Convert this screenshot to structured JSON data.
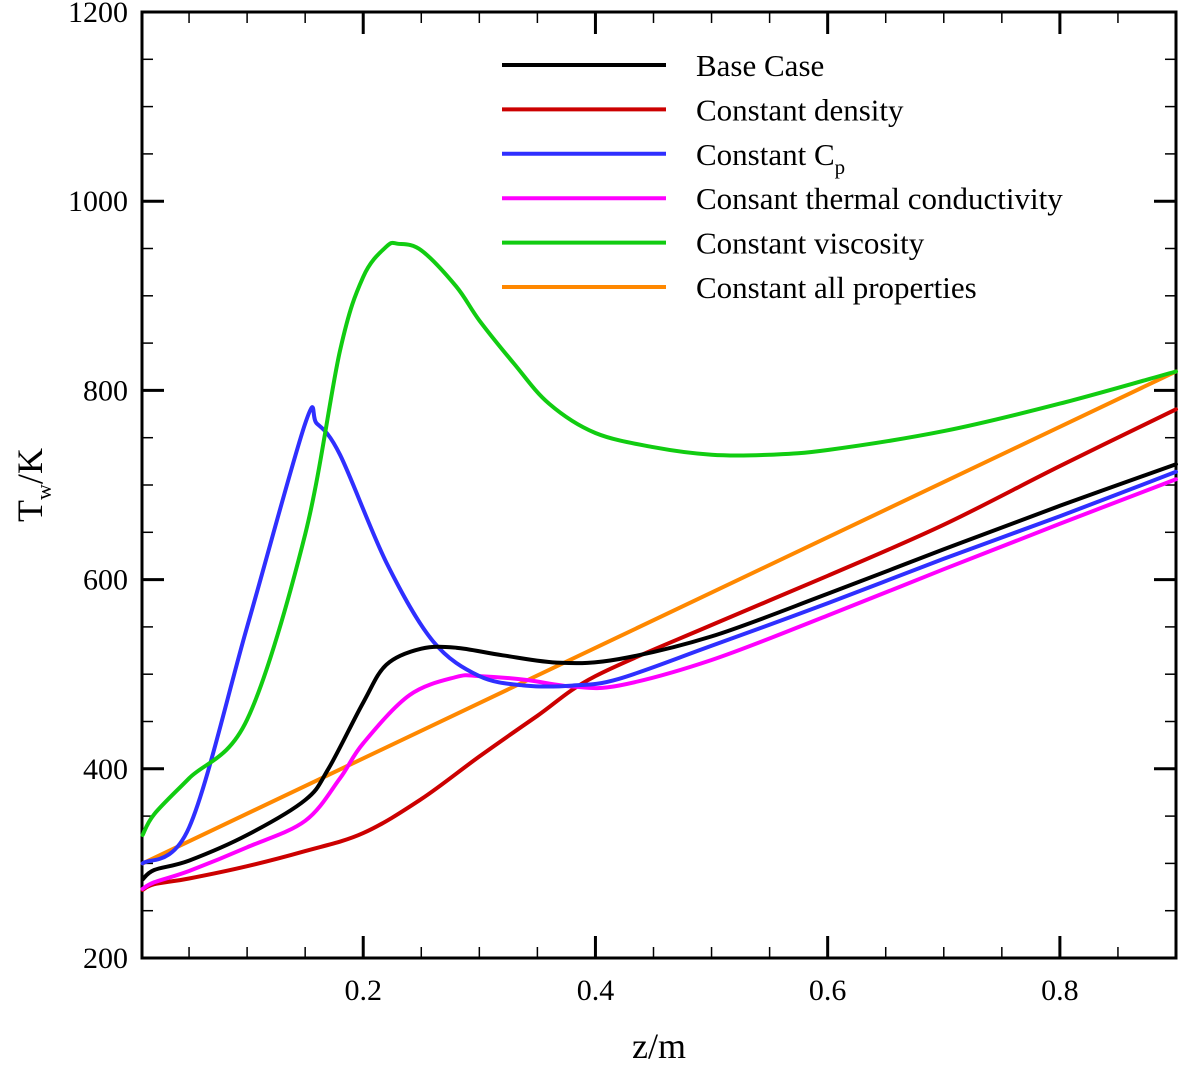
{
  "chart_data": {
    "type": "line",
    "title": "",
    "xlabel": "z/m",
    "ylabel": {
      "main": "T",
      "sub": "w",
      "rest": "/K"
    },
    "xlim": [
      0.01,
      0.9
    ],
    "ylim": [
      200,
      1200
    ],
    "x_ticks": [
      {
        "value": 0.2,
        "label": "0.2"
      },
      {
        "value": 0.4,
        "label": "0.4"
      },
      {
        "value": 0.6,
        "label": "0.6"
      },
      {
        "value": 0.8,
        "label": "0.8"
      }
    ],
    "y_ticks": [
      {
        "value": 200,
        "label": "200"
      },
      {
        "value": 400,
        "label": "400"
      },
      {
        "value": 600,
        "label": "600"
      },
      {
        "value": 800,
        "label": "800"
      },
      {
        "value": 1000,
        "label": "1000"
      },
      {
        "value": 1200,
        "label": "1200"
      }
    ],
    "grid": false,
    "legend_position": "top-right",
    "series": [
      {
        "name": "Base Case",
        "color": "#000000",
        "x": [
          0.01,
          0.02,
          0.05,
          0.1,
          0.15,
          0.17,
          0.2,
          0.22,
          0.25,
          0.28,
          0.32,
          0.37,
          0.42,
          0.5,
          0.6,
          0.7,
          0.8,
          0.9
        ],
        "y": [
          283,
          293,
          303,
          330,
          367,
          400,
          470,
          510,
          527,
          528,
          520,
          512,
          516,
          540,
          585,
          632,
          678,
          722
        ]
      },
      {
        "name": "Constant density",
        "color": "#cc0000",
        "x": [
          0.01,
          0.02,
          0.05,
          0.1,
          0.15,
          0.2,
          0.25,
          0.3,
          0.35,
          0.4,
          0.5,
          0.6,
          0.7,
          0.8,
          0.9
        ],
        "y": [
          272,
          278,
          284,
          297,
          313,
          332,
          368,
          413,
          456,
          498,
          552,
          604,
          658,
          720,
          780
        ]
      },
      {
        "name": "Constant C",
        "name_sub": "p",
        "color": "#2f2fff",
        "x": [
          0.01,
          0.05,
          0.1,
          0.15,
          0.16,
          0.18,
          0.22,
          0.26,
          0.3,
          0.34,
          0.38,
          0.42,
          0.5,
          0.6,
          0.7,
          0.8,
          0.9
        ],
        "y": [
          300,
          338,
          550,
          765,
          765,
          732,
          618,
          535,
          498,
          488,
          488,
          495,
          530,
          575,
          622,
          667,
          714
        ]
      },
      {
        "name": "Consant thermal conductivity",
        "color": "#ff00ff",
        "x": [
          0.01,
          0.02,
          0.05,
          0.1,
          0.15,
          0.18,
          0.2,
          0.24,
          0.28,
          0.3,
          0.34,
          0.38,
          0.42,
          0.5,
          0.6,
          0.7,
          0.8,
          0.9
        ],
        "y": [
          273,
          280,
          292,
          317,
          345,
          390,
          427,
          478,
          497,
          498,
          494,
          487,
          488,
          515,
          562,
          611,
          659,
          706
        ]
      },
      {
        "name": "Constant viscosity",
        "color": "#11cc11",
        "x": [
          0.01,
          0.02,
          0.05,
          0.1,
          0.15,
          0.18,
          0.2,
          0.22,
          0.23,
          0.25,
          0.28,
          0.3,
          0.33,
          0.36,
          0.4,
          0.45,
          0.5,
          0.55,
          0.6,
          0.7,
          0.8,
          0.9
        ],
        "y": [
          330,
          352,
          390,
          452,
          648,
          842,
          920,
          952,
          955,
          948,
          910,
          874,
          828,
          786,
          755,
          740,
          732,
          732,
          737,
          757,
          786,
          820
        ]
      },
      {
        "name": "Constant all properties",
        "color": "#ff8800",
        "x": [
          0.01,
          0.9
        ],
        "y": [
          300,
          820
        ]
      }
    ]
  }
}
